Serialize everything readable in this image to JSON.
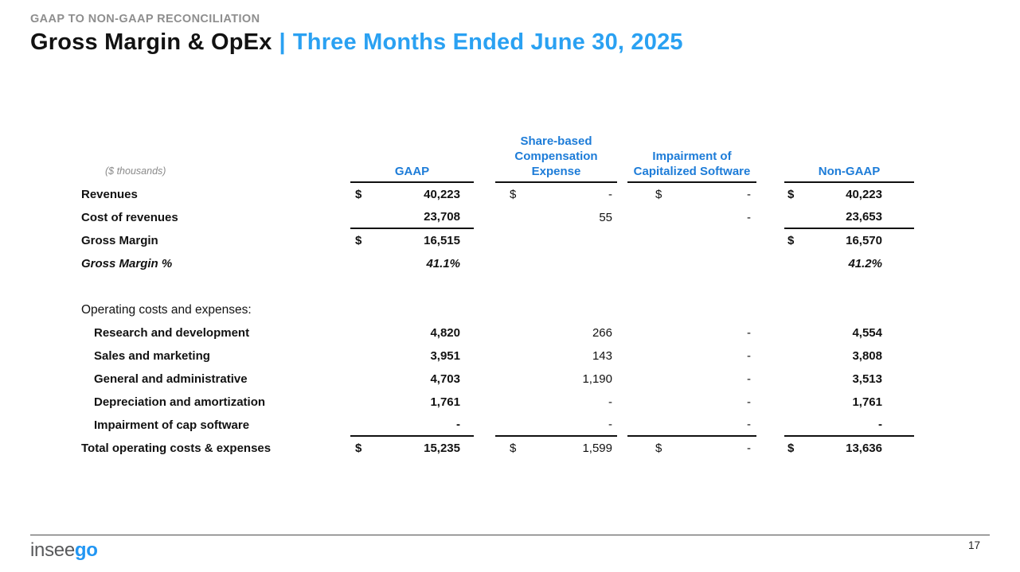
{
  "slide": {
    "eyebrow": "GAAP TO NON-GAAP RECONCILIATION",
    "title_main": "Gross Margin & OpEx",
    "title_separator": "|",
    "title_period": "Three Months Ended June 30, 2025",
    "page_number": "17"
  },
  "logo": {
    "text_gray": "insee",
    "text_blue": "go"
  },
  "colors": {
    "title_blue": "#2aa1f2",
    "header_blue": "#1d7cd8",
    "text_dark": "#121212",
    "eyebrow_gray": "#8e8e8e",
    "units_gray": "#8a8a8a",
    "logo_gray": "#58595b",
    "logo_blue": "#2196f3",
    "line_dark": "#101010",
    "footer_line": "#4a4a4a"
  },
  "table": {
    "units_note": "($ thousands)",
    "columns": [
      {
        "key": "gaap",
        "label": "GAAP"
      },
      {
        "key": "sbc",
        "label": "Share-based Compensation Expense"
      },
      {
        "key": "imp",
        "label": "Impairment of Capitalized Software"
      },
      {
        "key": "ng",
        "label": "Non-GAAP"
      }
    ],
    "rows": [
      {
        "label": "Revenues",
        "cells": {
          "gaap": {
            "dollar": "$",
            "value": "40,223"
          },
          "sbc": {
            "dollar": "$",
            "value": "-"
          },
          "imp": {
            "dollar": "$",
            "value": "-"
          },
          "ng": {
            "dollar": "$",
            "value": "40,223"
          }
        }
      },
      {
        "label": "Cost of revenues",
        "cells": {
          "gaap": {
            "value": "23,708",
            "underline": true
          },
          "sbc": {
            "value": "55"
          },
          "imp": {
            "value": "-"
          },
          "ng": {
            "value": "23,653",
            "underline": true
          }
        }
      },
      {
        "label": "Gross Margin",
        "cells": {
          "gaap": {
            "dollar": "$",
            "value": "16,515"
          },
          "ng": {
            "dollar": "$",
            "value": "16,570"
          }
        }
      },
      {
        "label": "Gross Margin %",
        "italic": true,
        "cells": {
          "gaap": {
            "value": "41.1%"
          },
          "ng": {
            "value": "41.2%"
          }
        }
      },
      {
        "spacer": true
      },
      {
        "label": "Operating costs and expenses:",
        "label_regular": true,
        "cells": {}
      },
      {
        "label": "Research and development",
        "indent": true,
        "cells": {
          "gaap": {
            "value": "4,820"
          },
          "sbc": {
            "value": "266"
          },
          "imp": {
            "value": "-"
          },
          "ng": {
            "value": "4,554"
          }
        }
      },
      {
        "label": "Sales and marketing",
        "indent": true,
        "cells": {
          "gaap": {
            "value": "3,951"
          },
          "sbc": {
            "value": "143"
          },
          "imp": {
            "value": "-"
          },
          "ng": {
            "value": "3,808"
          }
        }
      },
      {
        "label": "General and administrative",
        "indent": true,
        "cells": {
          "gaap": {
            "value": "4,703"
          },
          "sbc": {
            "value": "1,190"
          },
          "imp": {
            "value": "-"
          },
          "ng": {
            "value": "3,513"
          }
        }
      },
      {
        "label": "Depreciation and amortization",
        "indent": true,
        "cells": {
          "gaap": {
            "value": "1,761"
          },
          "sbc": {
            "value": "-"
          },
          "imp": {
            "value": "-"
          },
          "ng": {
            "value": "1,761"
          }
        }
      },
      {
        "label": "Impairment of cap software",
        "indent": true,
        "cells": {
          "gaap": {
            "value": "-",
            "underline": true
          },
          "sbc": {
            "value": "-",
            "underline": true
          },
          "imp": {
            "value": "-",
            "underline": true
          },
          "ng": {
            "value": "-",
            "underline": true
          }
        }
      },
      {
        "label": "Total operating costs & expenses",
        "cells": {
          "gaap": {
            "dollar": "$",
            "value": "15,235"
          },
          "sbc": {
            "dollar": "$",
            "value": "1,599"
          },
          "imp": {
            "dollar": "$",
            "value": "-"
          },
          "ng": {
            "dollar": "$",
            "value": "13,636"
          }
        }
      }
    ]
  }
}
